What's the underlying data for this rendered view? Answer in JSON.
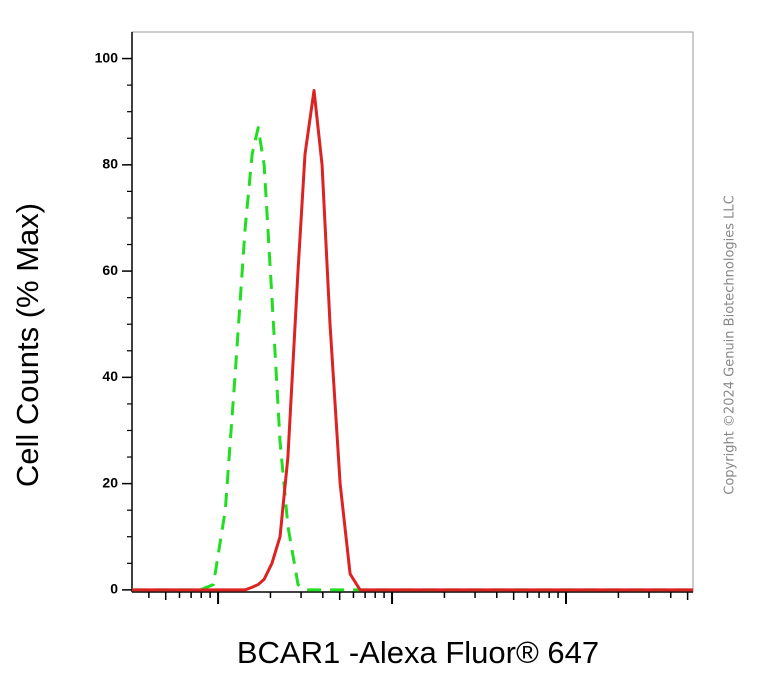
{
  "chart_data": {
    "type": "line",
    "y_label": "Cell Counts (% Max)",
    "x_label": "BCAR1 -Alexa Fluor® 647",
    "annotation": "Copyright ©2024 Genuin Biotechnologies LLC",
    "x_scale": "log",
    "xlim": [
      32,
      53700
    ],
    "xticks": [
      100,
      1000,
      10000
    ],
    "ylim": [
      -0.4,
      105
    ],
    "yticks": [
      0,
      20,
      40,
      60,
      80,
      100
    ],
    "x": [
      32,
      79,
      94,
      110,
      125,
      143,
      157,
      170,
      184,
      204,
      227,
      252,
      288,
      316,
      356,
      396,
      440,
      503,
      574,
      655,
      1450,
      4180,
      15700,
      53700
    ],
    "series": [
      {
        "color": "#22dd22",
        "dashed": true,
        "values": [
          0,
          0,
          1,
          15,
          40,
          68,
          82,
          87,
          80,
          55,
          28,
          12,
          1,
          0,
          0,
          0,
          0,
          0,
          0,
          0,
          0,
          0,
          0,
          0
        ]
      },
      {
        "color": "#dd2222",
        "dashed": false,
        "values": [
          0,
          0,
          0,
          0,
          0,
          0,
          0.5,
          1,
          2,
          5,
          10,
          25,
          60,
          82,
          94,
          80,
          50,
          20,
          3,
          0,
          0,
          0,
          0,
          0
        ]
      }
    ]
  }
}
